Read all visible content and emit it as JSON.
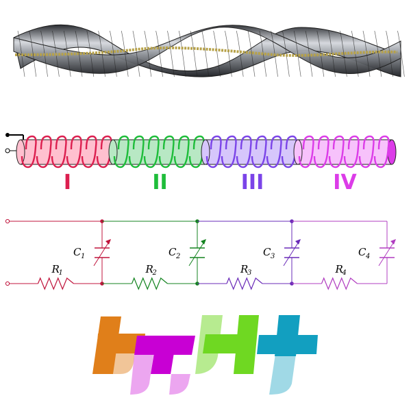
{
  "coil": {
    "sections": [
      {
        "roman": "I",
        "color": "#dc1f4f",
        "fill": "#ffc0cf"
      },
      {
        "roman": "II",
        "color": "#1ebd3a",
        "fill": "#b8e8c4"
      },
      {
        "roman": "III",
        "color": "#7b44e8",
        "fill": "#d6c6fb"
      },
      {
        "roman": "IV",
        "color": "#dc3ce8",
        "fill": "#f7c2fb"
      }
    ]
  },
  "circuit": {
    "capacitors": [
      {
        "name": "C",
        "sub": "1",
        "color": "#c0143c"
      },
      {
        "name": "C",
        "sub": "2",
        "color": "#13831f"
      },
      {
        "name": "C",
        "sub": "3",
        "color": "#6a2bb8"
      },
      {
        "name": "C",
        "sub": "4",
        "color": "#b03cc0"
      }
    ],
    "resistors": [
      {
        "name": "R",
        "sub": "1",
        "color": "#c0143c"
      },
      {
        "name": "R",
        "sub": "2",
        "color": "#13831f"
      },
      {
        "name": "R",
        "sub": "3",
        "color": "#6a2bb8"
      },
      {
        "name": "R",
        "sub": "4",
        "color": "#b03cc0"
      }
    ]
  },
  "logo": {
    "colors": [
      "#e07f1a",
      "#c800d4",
      "#6fd822",
      "#129fc0"
    ]
  }
}
